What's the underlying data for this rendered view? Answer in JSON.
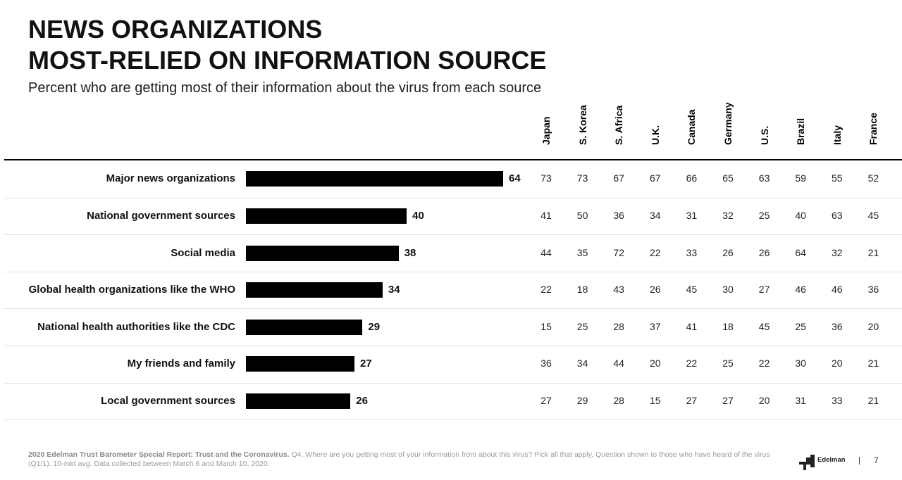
{
  "header": {
    "title_line1": "NEWS ORGANIZATIONS",
    "title_line2": "MOST-RELIED ON INFORMATION SOURCE",
    "subtitle": "Percent who are getting most of their information about the virus from each source"
  },
  "chart_data": {
    "type": "bar",
    "orientation": "horizontal",
    "title": "NEWS ORGANIZATIONS MOST-RELIED ON INFORMATION SOURCE",
    "subtitle": "Percent who are getting most of their information about the virus from each source",
    "categories": [
      "Major news organizations",
      "National government sources",
      "Social media",
      "Global health organizations like the WHO",
      "National health authorities like the CDC",
      "My friends and family",
      "Local government sources"
    ],
    "values": [
      64,
      40,
      38,
      34,
      29,
      27,
      26
    ],
    "xlim": [
      0,
      64
    ],
    "grid": false,
    "bar_color": "#000000",
    "table": {
      "columns": [
        "Japan",
        "S. Korea",
        "S. Africa",
        "U.K.",
        "Canada",
        "Germany",
        "U.S.",
        "Brazil",
        "Italy",
        "France"
      ],
      "rows": [
        [
          73,
          73,
          67,
          67,
          66,
          65,
          63,
          59,
          55,
          52
        ],
        [
          41,
          50,
          36,
          34,
          31,
          32,
          25,
          40,
          63,
          45
        ],
        [
          44,
          35,
          72,
          22,
          33,
          26,
          26,
          64,
          32,
          21
        ],
        [
          22,
          18,
          43,
          26,
          45,
          30,
          27,
          46,
          46,
          36
        ],
        [
          15,
          25,
          28,
          37,
          41,
          18,
          45,
          25,
          36,
          20
        ],
        [
          36,
          34,
          44,
          20,
          22,
          25,
          22,
          30,
          20,
          21
        ],
        [
          27,
          29,
          28,
          15,
          27,
          27,
          20,
          31,
          33,
          21
        ]
      ]
    }
  },
  "footer": {
    "source_bold": "2020 Edelman Trust Barometer Special Report: Trust and the Coronavirus.",
    "source_text": " Q4. Where are you getting most of your information from about this virus? Pick all that apply. Question shown to those who have heard of the virus (Q1/1). 10-mkt avg. Data collected between March 6 and March 10, 2020.",
    "logo_text": "Edelman",
    "logo_icon": "edelman-logo-icon",
    "page_number": "7"
  }
}
